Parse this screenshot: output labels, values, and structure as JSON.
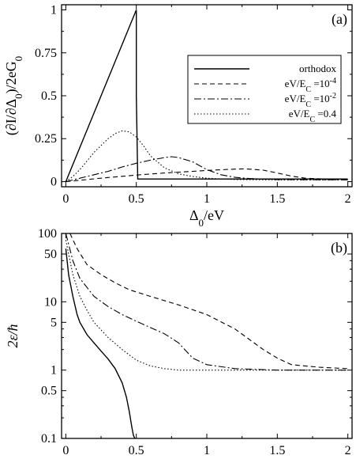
{
  "chart_data": [
    {
      "type": "line",
      "panel_label": "(a)",
      "xlabel": "Δ0/eV",
      "ylabel": "(∂I/∂Δ0)/2eG0",
      "xlim": [
        -0.03,
        2.03
      ],
      "ylim": [
        -0.03,
        1.03
      ],
      "xticks": [
        0,
        0.5,
        1,
        1.5,
        2
      ],
      "xtick_labels": [
        "0",
        "0.5",
        "1",
        "1.5",
        "2"
      ],
      "yticks": [
        0,
        0.25,
        0.5,
        0.75,
        1
      ],
      "ytick_labels": [
        "0",
        "0.25",
        "0.5",
        "0.75",
        "1"
      ],
      "grid": false,
      "legend_position": "upper-right",
      "series": [
        {
          "name": "orthodox",
          "style": "solid",
          "x": [
            0,
            0.5,
            0.5,
            0.51,
            2.0
          ],
          "y": [
            0,
            1.0,
            0.5,
            0.015,
            0.015
          ]
        },
        {
          "name": "eV/E_C =10^-4",
          "style": "dashed",
          "x": [
            0,
            0.1,
            0.2,
            0.3,
            0.4,
            0.5,
            0.6,
            0.7,
            0.8,
            0.9,
            1.0,
            1.1,
            1.2,
            1.25,
            1.3,
            1.4,
            1.5,
            1.6,
            1.7,
            2.0
          ],
          "y": [
            0,
            0.008,
            0.016,
            0.024,
            0.031,
            0.038,
            0.044,
            0.05,
            0.055,
            0.06,
            0.065,
            0.069,
            0.073,
            0.074,
            0.073,
            0.067,
            0.05,
            0.032,
            0.02,
            0.01
          ]
        },
        {
          "name": "eV/E_C =10^-2",
          "style": "dashdot",
          "x": [
            0,
            0.1,
            0.2,
            0.3,
            0.4,
            0.5,
            0.6,
            0.7,
            0.75,
            0.8,
            0.9,
            1.0,
            1.1,
            1.2,
            1.3,
            1.5,
            2.0
          ],
          "y": [
            0,
            0.02,
            0.04,
            0.06,
            0.085,
            0.107,
            0.125,
            0.14,
            0.145,
            0.14,
            0.115,
            0.07,
            0.04,
            0.025,
            0.018,
            0.012,
            0.01
          ]
        },
        {
          "name": "eV/E_C =0.4",
          "style": "dotted",
          "x": [
            0,
            0.05,
            0.1,
            0.15,
            0.2,
            0.25,
            0.3,
            0.35,
            0.4,
            0.45,
            0.5,
            0.55,
            0.6,
            0.7,
            0.8,
            0.9,
            1.0,
            1.2,
            1.5,
            2.0
          ],
          "y": [
            0,
            0.03,
            0.07,
            0.12,
            0.17,
            0.21,
            0.25,
            0.28,
            0.296,
            0.29,
            0.26,
            0.21,
            0.15,
            0.08,
            0.045,
            0.03,
            0.02,
            0.012,
            0.01,
            0.01
          ]
        }
      ]
    },
    {
      "type": "line",
      "panel_label": "(b)",
      "xlabel": "Δ0/eV",
      "ylabel": "2ε/ħ",
      "xlim": [
        -0.03,
        2.03
      ],
      "ylim": [
        0.1,
        100
      ],
      "yscale": "log",
      "xticks": [
        0,
        0.5,
        1,
        1.5,
        2
      ],
      "xtick_labels": [
        "0",
        "0.5",
        "1",
        "1.5",
        "2"
      ],
      "yticks": [
        0.1,
        0.5,
        1,
        5,
        10,
        50,
        100
      ],
      "ytick_labels": [
        "0.1",
        "0.5",
        "1",
        "5",
        "10",
        "50",
        "100"
      ],
      "grid": false,
      "series": [
        {
          "name": "orthodox",
          "style": "solid",
          "x": [
            0,
            0.02,
            0.05,
            0.08,
            0.1,
            0.15,
            0.2,
            0.25,
            0.3,
            0.35,
            0.4,
            0.43,
            0.45,
            0.47,
            0.48,
            0.49
          ],
          "y": [
            60,
            25,
            12,
            6.5,
            5,
            3.3,
            2.5,
            1.9,
            1.45,
            1.05,
            0.65,
            0.4,
            0.25,
            0.14,
            0.11,
            0.1
          ]
        },
        {
          "name": "eV/E_C =10^-4",
          "style": "dashed",
          "x": [
            0.03,
            0.08,
            0.15,
            0.25,
            0.35,
            0.45,
            0.6,
            0.8,
            1.0,
            1.2,
            1.4,
            1.5,
            1.6,
            1.8,
            2.0
          ],
          "y": [
            100,
            60,
            35,
            25,
            19,
            15,
            12,
            9,
            6.5,
            4,
            2,
            1.5,
            1.2,
            1.1,
            1.05
          ]
        },
        {
          "name": "eV/E_C =10^-2",
          "style": "dashdot",
          "x": [
            0,
            0.05,
            0.1,
            0.2,
            0.3,
            0.4,
            0.5,
            0.6,
            0.7,
            0.8,
            0.9,
            1.0,
            1.2,
            1.5,
            2.0
          ],
          "y": [
            100,
            40,
            22,
            12,
            8.5,
            6.5,
            5.2,
            4.2,
            3.4,
            2.5,
            1.5,
            1.2,
            1.05,
            1.0,
            1.0
          ]
        },
        {
          "name": "eV/E_C =0.4",
          "style": "dotted",
          "x": [
            0,
            0.05,
            0.1,
            0.15,
            0.2,
            0.3,
            0.4,
            0.5,
            0.6,
            0.7,
            0.8,
            1.0,
            1.5,
            2.0
          ],
          "y": [
            80,
            25,
            12,
            7.5,
            5,
            3,
            2,
            1.4,
            1.15,
            1.05,
            1.0,
            1.0,
            1.0,
            1.0
          ]
        }
      ]
    }
  ]
}
